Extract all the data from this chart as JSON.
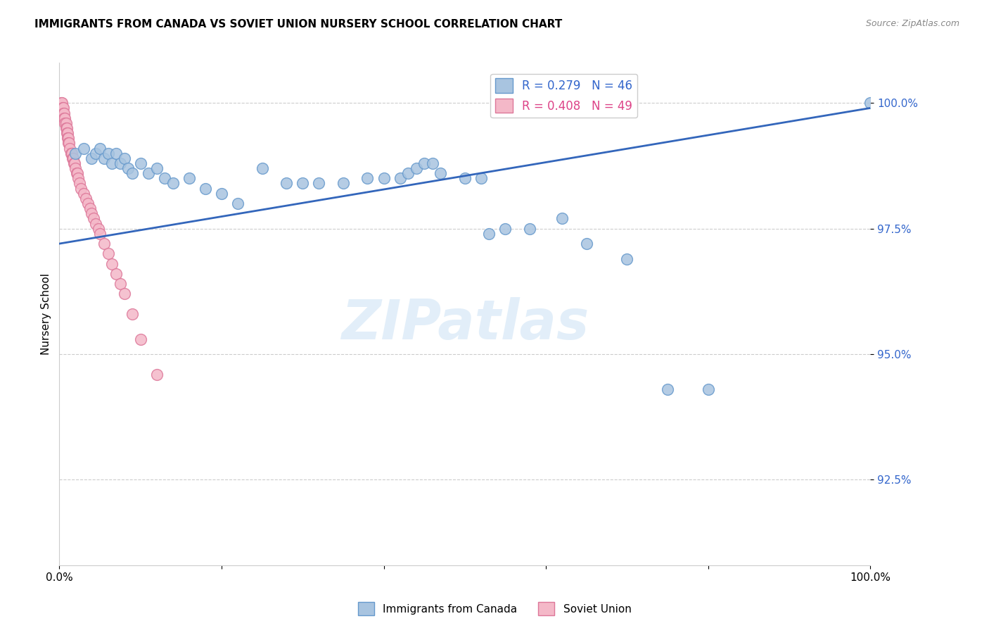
{
  "title": "IMMIGRANTS FROM CANADA VS SOVIET UNION NURSERY SCHOOL CORRELATION CHART",
  "source": "Source: ZipAtlas.com",
  "ylabel": "Nursery School",
  "ytick_labels": [
    "100.0%",
    "97.5%",
    "95.0%",
    "92.5%"
  ],
  "ytick_values": [
    1.0,
    0.975,
    0.95,
    0.925
  ],
  "xlim": [
    0.0,
    1.0
  ],
  "ylim": [
    0.908,
    1.008
  ],
  "legend_entries": [
    "Immigrants from Canada",
    "Soviet Union"
  ],
  "r_canada": 0.279,
  "n_canada": 46,
  "r_soviet": 0.408,
  "n_soviet": 49,
  "canada_color": "#a8c4e0",
  "canada_edge": "#6699cc",
  "soviet_color": "#f4b8c8",
  "soviet_edge": "#dd7799",
  "trendline_color": "#3366bb",
  "canada_x": [
    0.02,
    0.03,
    0.04,
    0.045,
    0.05,
    0.055,
    0.06,
    0.065,
    0.07,
    0.075,
    0.08,
    0.085,
    0.09,
    0.1,
    0.11,
    0.12,
    0.13,
    0.14,
    0.16,
    0.18,
    0.2,
    0.22,
    0.25,
    0.28,
    0.3,
    0.32,
    0.35,
    0.38,
    0.4,
    0.42,
    0.43,
    0.44,
    0.45,
    0.46,
    0.47,
    0.5,
    0.52,
    0.53,
    0.55,
    0.58,
    0.62,
    0.65,
    0.7,
    0.75,
    0.8,
    1.0
  ],
  "canada_y": [
    0.99,
    0.991,
    0.989,
    0.99,
    0.991,
    0.989,
    0.99,
    0.988,
    0.99,
    0.988,
    0.989,
    0.987,
    0.986,
    0.988,
    0.986,
    0.987,
    0.985,
    0.984,
    0.985,
    0.983,
    0.982,
    0.98,
    0.987,
    0.984,
    0.984,
    0.984,
    0.984,
    0.985,
    0.985,
    0.985,
    0.986,
    0.987,
    0.988,
    0.988,
    0.986,
    0.985,
    0.985,
    0.974,
    0.975,
    0.975,
    0.977,
    0.972,
    0.969,
    0.943,
    0.943,
    1.0
  ],
  "soviet_x": [
    0.002,
    0.003,
    0.004,
    0.005,
    0.005,
    0.006,
    0.006,
    0.007,
    0.007,
    0.008,
    0.008,
    0.009,
    0.009,
    0.01,
    0.01,
    0.011,
    0.011,
    0.012,
    0.013,
    0.014,
    0.015,
    0.016,
    0.017,
    0.018,
    0.019,
    0.02,
    0.021,
    0.022,
    0.023,
    0.025,
    0.027,
    0.03,
    0.033,
    0.035,
    0.038,
    0.04,
    0.042,
    0.045,
    0.048,
    0.05,
    0.055,
    0.06,
    0.065,
    0.07,
    0.075,
    0.08,
    0.09,
    0.1,
    0.12
  ],
  "soviet_y": [
    1.0,
    1.0,
    0.999,
    0.999,
    0.998,
    0.998,
    0.997,
    0.997,
    0.996,
    0.996,
    0.995,
    0.995,
    0.994,
    0.994,
    0.993,
    0.993,
    0.992,
    0.992,
    0.991,
    0.99,
    0.99,
    0.989,
    0.989,
    0.988,
    0.988,
    0.987,
    0.986,
    0.986,
    0.985,
    0.984,
    0.983,
    0.982,
    0.981,
    0.98,
    0.979,
    0.978,
    0.977,
    0.976,
    0.975,
    0.974,
    0.972,
    0.97,
    0.968,
    0.966,
    0.964,
    0.962,
    0.958,
    0.953,
    0.946
  ],
  "trendline_x": [
    0.0,
    1.0
  ],
  "trendline_y_start": 0.972,
  "trendline_y_end": 0.999
}
